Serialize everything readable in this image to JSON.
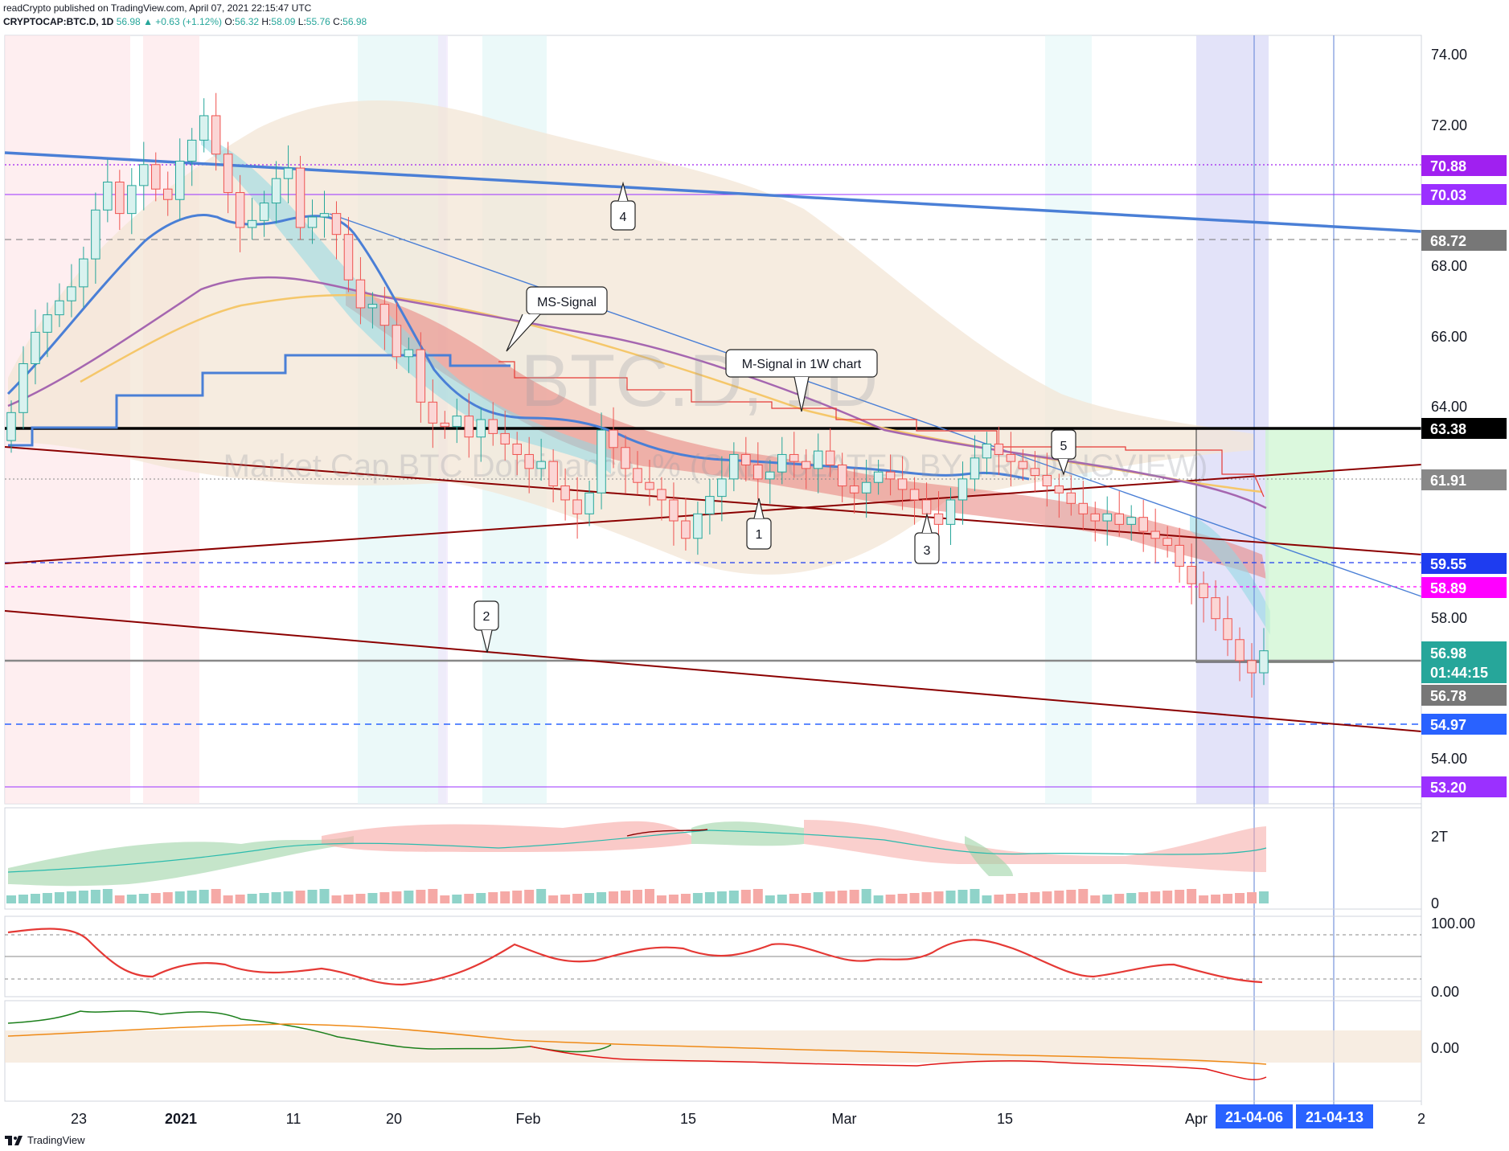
{
  "header": {
    "line1": "readCrypto published on TradingView.com, April 07, 2021 22:15:47 UTC",
    "symbol": "CRYPTOCAP:BTC.D, 1D",
    "last": "56.98",
    "change": "▲ +0.63 (+1.12%)",
    "o_label": "O:",
    "o": "56.32",
    "h_label": "H:",
    "h": "58.09",
    "l_label": "L:",
    "l": "55.76",
    "c_label": "C:",
    "c": "56.98"
  },
  "watermark": {
    "symbol": "BTC.D, 1D",
    "description": "Market Cap BTC Dominance, % (CALCULATED BY TRADINGVIEW)"
  },
  "footer": {
    "brand": "TradingView"
  },
  "colors": {
    "up_candle": "#26a69a",
    "down_candle": "#ef5350",
    "trend_blue": "#4a7fd6",
    "trend_red": "#8b0000",
    "support_black": "#000000",
    "purple": "#9b59b6",
    "ma_yellow": "#f5c76a",
    "cloud": "#f3e6d6"
  },
  "chart_data": {
    "type": "candlestick",
    "symbol": "CRYPTOCAP:BTC.D",
    "interval": "1D",
    "y_axis_ticks": [
      "74.00",
      "72.00",
      "68.00",
      "66.00",
      "64.00",
      "58.00",
      "54.00"
    ],
    "ylim": [
      52.6,
      74.6
    ],
    "x_axis_ticks": [
      "23",
      "2021",
      "11",
      "20",
      "Feb",
      "15",
      "Mar",
      "15",
      "Apr",
      "2"
    ],
    "x_axis_badges": [
      "21-04-06",
      "21-04-13"
    ],
    "price_labels": [
      {
        "text": "70.88",
        "value": 70.88,
        "color": "#a020f0"
      },
      {
        "text": "70.03",
        "value": 70.03,
        "color": "#9b30ff"
      },
      {
        "text": "68.72",
        "value": 68.72,
        "color": "#777777"
      },
      {
        "text": "63.38",
        "value": 63.38,
        "color": "#000000"
      },
      {
        "text": "61.91",
        "value": 61.91,
        "color": "#888888"
      },
      {
        "text": "59.55",
        "value": 59.55,
        "color": "#1e3cf0"
      },
      {
        "text": "58.89",
        "value": 58.89,
        "color": "#ff00ff"
      },
      {
        "text": "56.98",
        "value": 56.98,
        "color": "#26a69a"
      },
      {
        "text": "01:44:15",
        "value": 56.98,
        "color": "#26a69a"
      },
      {
        "text": "56.78",
        "value": 56.78,
        "color": "#777777"
      },
      {
        "text": "54.97",
        "value": 54.97,
        "color": "#2962ff"
      },
      {
        "text": "53.20",
        "value": 53.2,
        "color": "#9b30ff"
      }
    ],
    "callouts": [
      "MS-Signal",
      "M-Signal in 1W chart",
      "1",
      "2",
      "3",
      "4",
      "5"
    ],
    "close_series": [
      63.8,
      65.2,
      66.1,
      66.6,
      67.0,
      67.4,
      68.2,
      69.6,
      70.4,
      69.5,
      70.3,
      70.9,
      70.2,
      69.9,
      71.0,
      71.6,
      72.3,
      71.2,
      70.1,
      69.1,
      69.3,
      69.8,
      70.5,
      70.8,
      69.1,
      69.4,
      69.5,
      68.9,
      67.6,
      66.8,
      66.9,
      66.3,
      65.4,
      65.6,
      64.1,
      63.5,
      63.4,
      63.7,
      63.1,
      63.6,
      63.2,
      62.9,
      62.6,
      62.2,
      62.4,
      61.7,
      61.3,
      60.9,
      61.5,
      63.3,
      62.8,
      62.2,
      61.8,
      61.6,
      61.3,
      60.7,
      60.2,
      60.9,
      61.4,
      61.9,
      62.6,
      62.3,
      61.9,
      62.1,
      62.6,
      62.4,
      62.2,
      62.7,
      62.3,
      61.7,
      61.5,
      61.8,
      62.1,
      61.9,
      61.6,
      61.3,
      60.9,
      60.6,
      61.3,
      61.9,
      62.5,
      62.9,
      62.6,
      62.4,
      62.2,
      62.0,
      61.7,
      61.5,
      61.2,
      60.9,
      60.7,
      60.9,
      60.6,
      60.8,
      60.4,
      60.2,
      60.0,
      59.4,
      58.9,
      58.5,
      57.9,
      57.3,
      56.7,
      56.35,
      56.98
    ]
  }
}
